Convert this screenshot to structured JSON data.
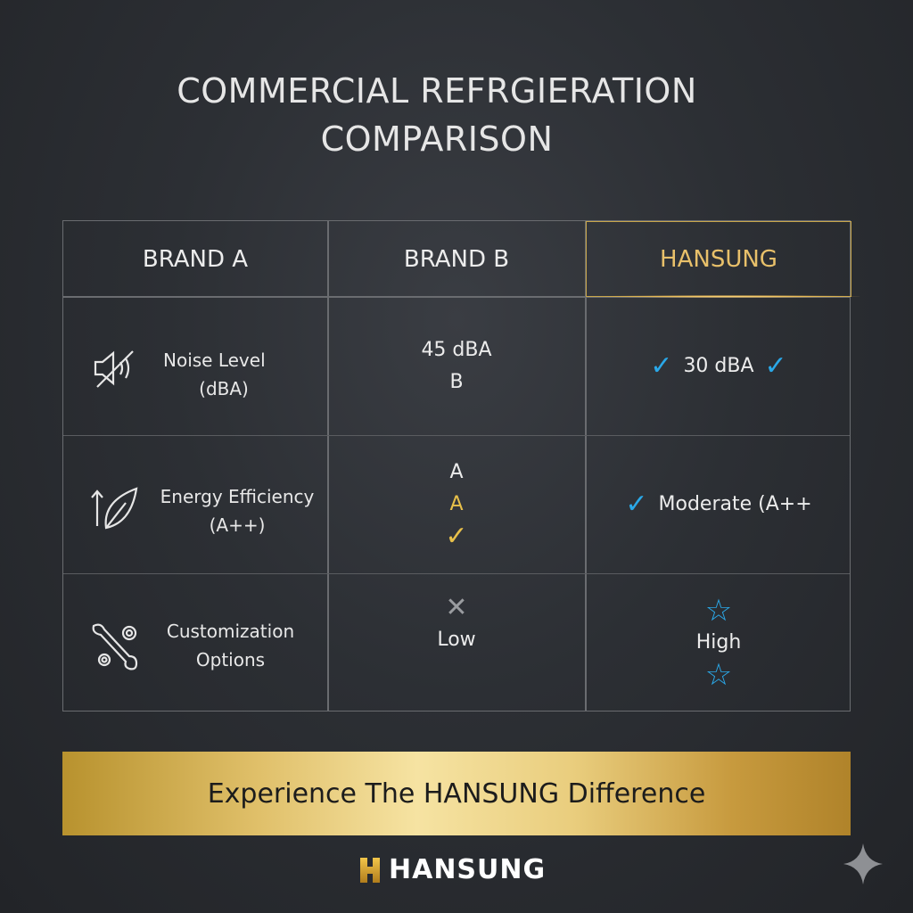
{
  "title": {
    "line1": "COMMERCIAL REFRGIERATION",
    "line2": "COMPARISON"
  },
  "columns": [
    "BRAND A",
    "BRAND B",
    "HANSUNG"
  ],
  "rows": [
    {
      "icon": "muted-speaker-icon",
      "label_line1": "Noise Level",
      "label_line2": "(dBA)",
      "brand_b": [
        "45 dBA",
        "B"
      ],
      "hansung": "30 dBA"
    },
    {
      "icon": "leaf-arrow-icon",
      "label_line1": "Energy Efficiency",
      "label_line2": "(A++)",
      "brand_b": [
        "A",
        "A"
      ],
      "hansung": "Moderate (A++"
    },
    {
      "icon": "wrench-gear-icon",
      "label_line1": "Customization",
      "label_line2": "Options",
      "brand_b": [
        "Low"
      ],
      "hansung": "High"
    }
  ],
  "banner": "Experience The HANSUNG Difference",
  "logo": "HANSUNG",
  "colors": {
    "accent_gold": "#e8c04a",
    "check_blue": "#2aa8e8",
    "background": "#2c2f34"
  }
}
